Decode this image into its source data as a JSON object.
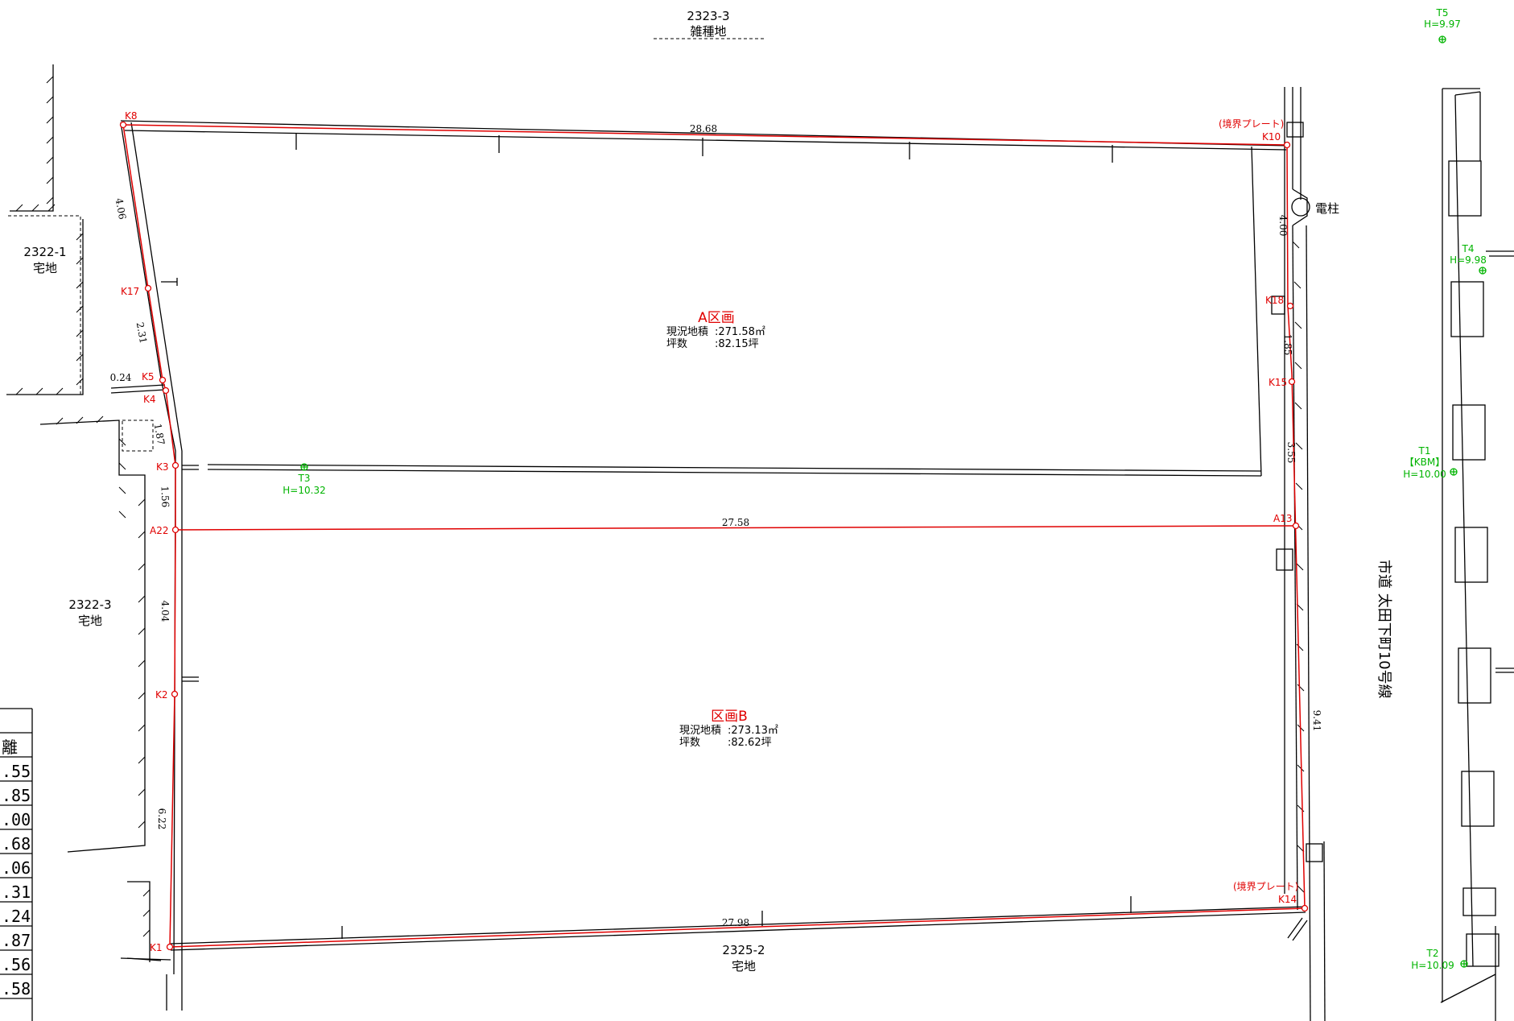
{
  "parcels": {
    "north": {
      "number": "2323-3",
      "use": "雑種地"
    },
    "west_upper": {
      "number": "2322-1",
      "use": "宅地"
    },
    "west_lower": {
      "number": "2322-3",
      "use": "宅地"
    },
    "south": {
      "number": "2325-2",
      "use": "宅地"
    }
  },
  "road_label": "市道 太田下町10号線",
  "utility_pole": "電柱",
  "boundary_plate": "(境界プレート)",
  "areas": {
    "A": {
      "title": "A区画",
      "area_label": "現況地積",
      "area_value": ":271.58㎡",
      "tsubo_label": "坪数",
      "tsubo_value": ":82.15坪"
    },
    "B": {
      "title": "区画B",
      "area_label": "現況地積",
      "area_value": ":273.13㎡",
      "tsubo_label": "坪数",
      "tsubo_value": ":82.62坪"
    }
  },
  "points": [
    "K8",
    "K10",
    "K17",
    "K5",
    "K4",
    "K3",
    "A22",
    "K2",
    "K1",
    "K18",
    "K15",
    "A13",
    "K14"
  ],
  "dimensions": [
    "28.68",
    "4.06",
    "2.31",
    "0.24",
    "1.87",
    "1.56",
    "4.04",
    "6.22",
    "27.58",
    "27.98",
    "4.00",
    "1.85",
    "3.55",
    "9.41"
  ],
  "benchmarks": [
    {
      "id": "T5",
      "h": "H=9.97"
    },
    {
      "id": "T4",
      "h": "H=9.98"
    },
    {
      "id": "T3",
      "h": "H=10.32"
    },
    {
      "id": "T1",
      "kbm": "【KBM】",
      "h": "H=10.00"
    },
    {
      "id": "T2",
      "h": "H=10.09"
    }
  ],
  "table": {
    "header": "離",
    "rows": [
      ".55",
      ".85",
      ".00",
      ".68",
      ".06",
      ".31",
      ".24",
      ".87",
      ".56",
      ".58"
    ]
  },
  "colors": {
    "boundary": "#e00000",
    "benchmark": "#00b400",
    "lines": "#000000"
  }
}
